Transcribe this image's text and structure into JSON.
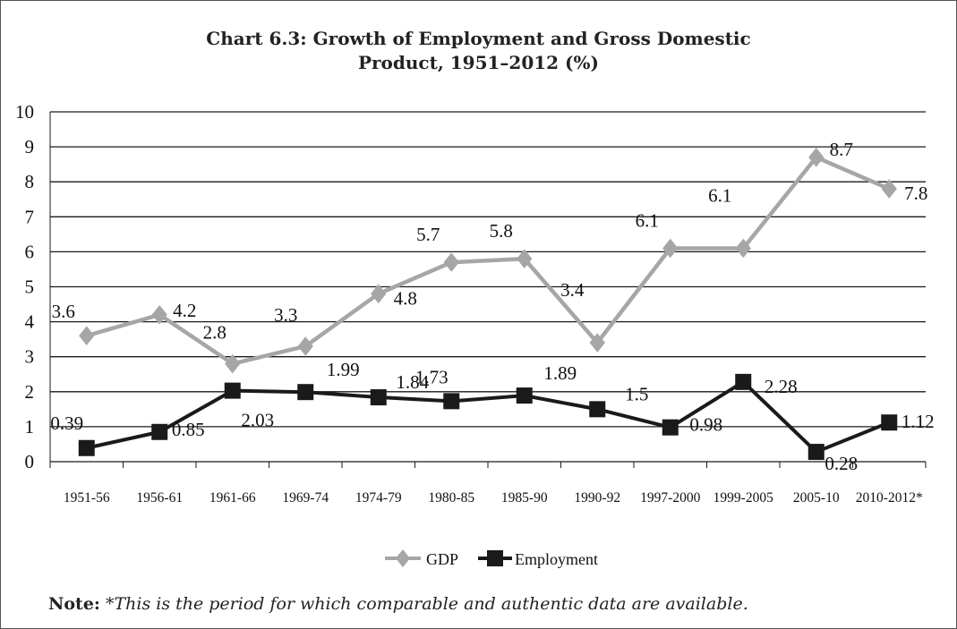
{
  "chart_data": {
    "type": "line",
    "title_line1": "Chart 6.3: Growth of Employment and Gross Domestic",
    "title_line2": "Product, 1951–2012 (%)",
    "categories": [
      "1951-56",
      "1956-61",
      "1961-66",
      "1969-74",
      "1974-79",
      "1980-85",
      "1985-90",
      "1990-92",
      "1997-2000",
      "1999-2005",
      "2005-10",
      "2010-2012*"
    ],
    "ylim": [
      0,
      10
    ],
    "yticks": [
      "0",
      "1",
      "2",
      "3",
      "4",
      "5",
      "6",
      "7",
      "8",
      "9",
      "10"
    ],
    "grid": true,
    "legend_position": "bottom",
    "series": [
      {
        "name": "GDP",
        "color": "#a6a6a6",
        "marker": "diamond",
        "values": [
          3.6,
          4.2,
          2.8,
          3.3,
          4.8,
          5.7,
          5.8,
          3.4,
          6.1,
          6.1,
          8.7,
          7.8
        ],
        "labels": [
          "3.6",
          "4.2",
          "2.8",
          "3.3",
          "4.8",
          "5.7",
          "5.8",
          "3.4",
          "6.1",
          "6.1",
          "8.7",
          "7.8"
        ]
      },
      {
        "name": "Employment",
        "color": "#1a1a1a",
        "marker": "square",
        "values": [
          0.39,
          0.85,
          2.03,
          1.99,
          1.84,
          1.73,
          1.89,
          1.5,
          0.98,
          2.28,
          0.28,
          1.12
        ],
        "labels": [
          "0.39",
          "0.85",
          "2.03",
          "1.99",
          "1.84",
          "1.73",
          "1.89",
          "1.5",
          "0.98",
          "2.28",
          "0.28",
          "1.12"
        ]
      }
    ]
  },
  "note": {
    "label": "Note:",
    "text": " *This is the period for which comparable and authentic data are available."
  }
}
